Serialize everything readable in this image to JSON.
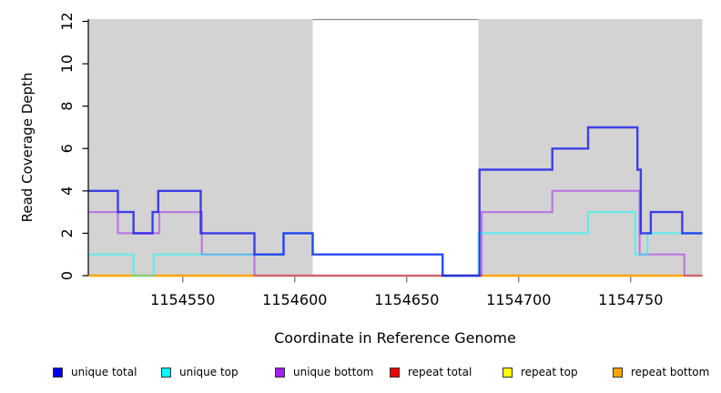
{
  "chart_data": {
    "type": "line",
    "subtype": "step",
    "title": "",
    "xlabel": "Coordinate in Reference Genome",
    "ylabel": "Read Coverage Depth",
    "xlim": [
      1154508,
      1154782
    ],
    "ylim": [
      0,
      12
    ],
    "x_ticks": [
      1154550,
      1154600,
      1154650,
      1154700,
      1154750
    ],
    "y_ticks": [
      0,
      2,
      4,
      6,
      8,
      10,
      12
    ],
    "grid": false,
    "legend_position": "bottom",
    "shaded_regions": [
      {
        "x0": 1154508,
        "x1": 1154608,
        "color": "#d3d3d3"
      },
      {
        "x0": 1154682,
        "x1": 1154782,
        "color": "#d3d3d3"
      }
    ],
    "gap_border_color": "#8c8c8c",
    "series": [
      {
        "name": "unique total",
        "color": "#0505ee",
        "opacity": 0.72,
        "width": 2.4,
        "steps": [
          [
            1154508,
            4
          ],
          [
            1154521,
            3
          ],
          [
            1154528,
            2
          ],
          [
            1154536.5,
            3
          ],
          [
            1154539,
            4
          ],
          [
            1154558,
            2
          ],
          [
            1154582,
            1
          ],
          [
            1154595,
            2
          ],
          [
            1154608,
            1
          ],
          [
            1154666,
            0
          ],
          [
            1154682.5,
            5
          ],
          [
            1154715,
            6
          ],
          [
            1154731,
            7
          ],
          [
            1154753,
            5
          ],
          [
            1154754.5,
            2
          ],
          [
            1154759,
            3
          ],
          [
            1154773,
            2
          ]
        ]
      },
      {
        "name": "unique top",
        "color": "#00ffff",
        "opacity": 0.5,
        "width": 2.2,
        "steps": [
          [
            1154508,
            1
          ],
          [
            1154528,
            0
          ],
          [
            1154537,
            1
          ],
          [
            1154595,
            2
          ],
          [
            1154608,
            1
          ],
          [
            1154666,
            0
          ],
          [
            1154682,
            2
          ],
          [
            1154731,
            3
          ],
          [
            1154752,
            1
          ],
          [
            1154757.5,
            2
          ]
        ]
      },
      {
        "name": "unique bottom",
        "color": "#a020f0",
        "opacity": 0.5,
        "width": 2.2,
        "steps": [
          [
            1154508,
            3
          ],
          [
            1154521,
            2
          ],
          [
            1154539.5,
            3
          ],
          [
            1154558.5,
            1
          ],
          [
            1154582,
            0
          ],
          [
            1154683.5,
            3
          ],
          [
            1154715,
            4
          ],
          [
            1154754,
            1
          ],
          [
            1154774,
            0
          ]
        ]
      },
      {
        "name": "repeat total",
        "color": "#dd0000",
        "opacity": 0.6,
        "width": 2.2,
        "steps": [
          [
            1154508,
            0
          ]
        ]
      },
      {
        "name": "repeat top",
        "color": "#ffff00",
        "opacity": 0.7,
        "width": 2.2,
        "steps": [
          [
            1154508,
            0
          ]
        ]
      },
      {
        "name": "repeat bottom",
        "color": "#ffa500",
        "opacity": 1.0,
        "width": 2.2,
        "steps": [
          [
            1154508,
            0
          ]
        ]
      }
    ],
    "draw_order": [
      "repeat total",
      "repeat top",
      "repeat bottom",
      "unique bottom",
      "unique top",
      "unique total"
    ]
  },
  "legend": {
    "items": [
      {
        "label": "unique total",
        "color": "#0000ee"
      },
      {
        "label": "unique top",
        "color": "#00ffff"
      },
      {
        "label": "unique bottom",
        "color": "#a020f0"
      },
      {
        "label": "repeat total",
        "color": "#ee0000"
      },
      {
        "label": "repeat top",
        "color": "#ffff00"
      },
      {
        "label": "repeat bottom",
        "color": "#ffa500"
      }
    ]
  }
}
